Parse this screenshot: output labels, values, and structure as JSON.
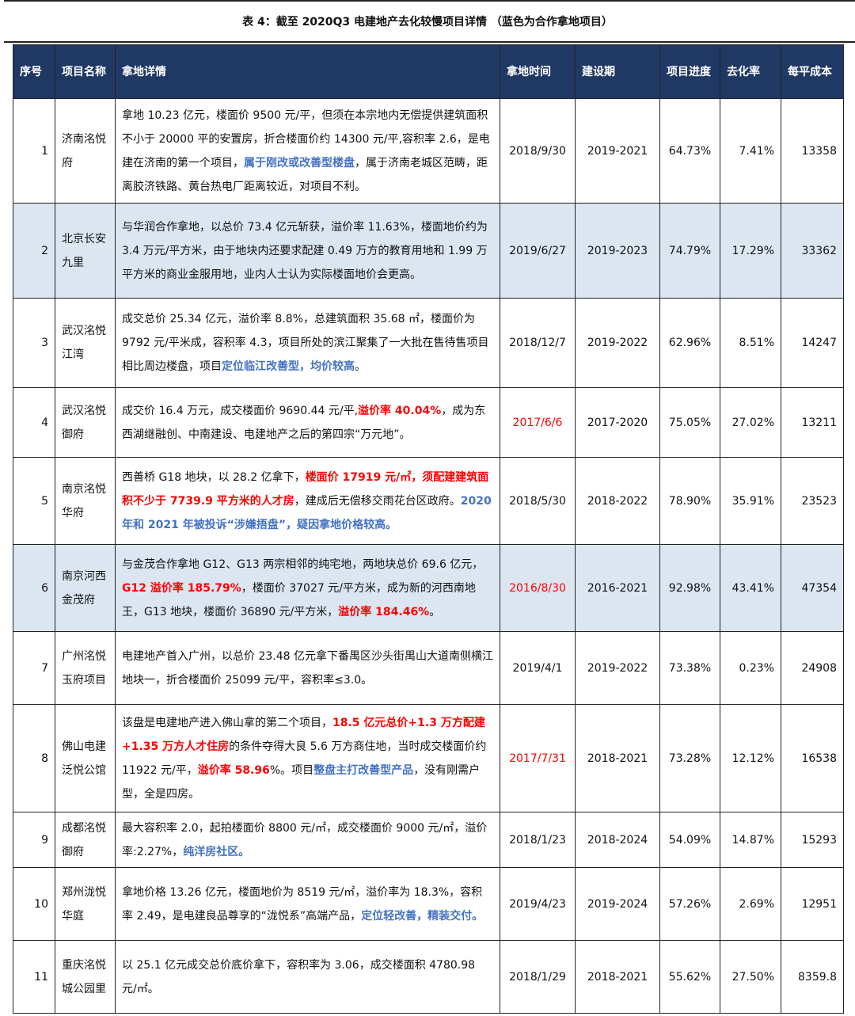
{
  "title": "表 4：截至 2020Q3 电建地产去化较慢项目详情 （蓝色为合作拿地项目）",
  "colors": {
    "header": "#203864",
    "coop_row": "#dce6f1",
    "blue_text": "#4472c4",
    "red_text": "#ff0000"
  },
  "headers": [
    "序号",
    "项目名称",
    "拿地详情",
    "拿地时间",
    "建设期",
    "项目进度",
    "去化率",
    "每平成本"
  ],
  "rows": [
    {
      "no": "1",
      "name": "济南洺悦府",
      "coop": false,
      "date": "2018/9/30",
      "date_red": false,
      "period": "2019-2021",
      "progress": "64.73%",
      "rate": "7.41%",
      "cost": "13358",
      "detail": [
        {
          "t": "拿地 10.23 亿元，楼面价 9500 元/平，但须在本宗地内无偿提供建筑面积不小于 20000 平的安置房，折合楼面价约 14300 元/平,容积率 2.6，是电建在济南的第一个项目，",
          "s": ""
        },
        {
          "t": "属于刚改或改善型楼盘",
          "s": "blue"
        },
        {
          "t": "，属于济南老城区范畴，距离胶济铁路、黄台热电厂距离较近，对项目不利。",
          "s": ""
        }
      ]
    },
    {
      "no": "2",
      "name": "北京长安九里",
      "coop": true,
      "date": "2019/6/27",
      "date_red": false,
      "period": "2019-2023",
      "progress": "74.79%",
      "rate": "17.29%",
      "cost": "33362",
      "detail": [
        {
          "t": "与华润合作拿地，以总价 73.4 亿元斩获，溢价率 11.63%，楼面地价约为 3.4 万元/平方米，由于地块内还要求配建 0.49 万方的教育用地和 1.99 万平方米的商业金服用地，业内人士认为实际楼面地价会更高。",
          "s": ""
        }
      ]
    },
    {
      "no": "3",
      "name": "武汉洺悦江湾",
      "coop": false,
      "date": "2018/12/7",
      "date_red": false,
      "period": "2019-2022",
      "progress": "62.96%",
      "rate": "8.51%",
      "cost": "14247",
      "detail": [
        {
          "t": "成交总价 25.34 亿元，溢价率 8.8%，总建筑面积 35.68 ㎡，楼面价为 9792 元/平米成，容积率 4.3，项目所处的滨江聚集了一大批在售待售项目相比周边楼盘，项目",
          "s": ""
        },
        {
          "t": "定位临江改善型，均价较高",
          "s": "blue"
        },
        {
          "t": "。",
          "s": ""
        }
      ]
    },
    {
      "no": "4",
      "name": "武汉洺悦御府",
      "coop": false,
      "date": "2017/6/6",
      "date_red": true,
      "period": "2017-2020",
      "progress": "75.05%",
      "rate": "27.02%",
      "cost": "13211",
      "detail": [
        {
          "t": "成交价 16.4 万元，成交楼面价 9690.44 元/平,",
          "s": ""
        },
        {
          "t": "溢价率 40.04%",
          "s": "red"
        },
        {
          "t": "，成为东西湖继融创、中南建设、电建地产之后的第四宗“万元地”。",
          "s": ""
        }
      ]
    },
    {
      "no": "5",
      "name": "南京洺悦华府",
      "coop": false,
      "date": "2018/5/30",
      "date_red": false,
      "period": "2018-2022",
      "progress": "78.90%",
      "rate": "35.91%",
      "cost": "23523",
      "detail": [
        {
          "t": "西善桥 G18 地块，以 28.2 亿拿下，",
          "s": ""
        },
        {
          "t": "楼面价 17919 元/㎡，须配建建筑面积不少于 7739.9 平方米的人才房",
          "s": "red"
        },
        {
          "t": "，建成后无偿移交雨花台区政府。",
          "s": ""
        },
        {
          "t": "2020 年和 2021 年被投诉“涉嫌捂盘”，疑因拿地价格较高。",
          "s": "blue"
        }
      ]
    },
    {
      "no": "6",
      "name": "南京河西金茂府",
      "coop": true,
      "date": "2016/8/30",
      "date_red": true,
      "period": "2016-2021",
      "progress": "92.98%",
      "rate": "43.41%",
      "cost": "47354",
      "detail": [
        {
          "t": "与金茂合作拿地 G12、G13 两宗相邻的纯宅地，两地块总价 69.6 亿元，",
          "s": ""
        },
        {
          "t": "G12 溢价率 185.79%",
          "s": "red"
        },
        {
          "t": "，楼面价 37027 元/平方米，成为新的河西南地王，G13 地块，楼面价 36890 元/平方米，",
          "s": ""
        },
        {
          "t": "溢价率 184.46%",
          "s": "red"
        },
        {
          "t": "。",
          "s": ""
        }
      ]
    },
    {
      "no": "7",
      "name": "广州洺悦玉府项目",
      "coop": false,
      "date": "2019/4/1",
      "date_red": false,
      "period": "2019-2022",
      "progress": "73.38%",
      "rate": "0.23%",
      "cost": "24908",
      "detail": [
        {
          "t": "电建地产首入广州，以总价 23.48 亿元拿下番禺区沙头街禺山大道南侧横江地块一，折合楼面价 25099 元/平，容积率≤3.0。",
          "s": ""
        }
      ]
    },
    {
      "no": "8",
      "name": "佛山电建泛悦公馆",
      "coop": false,
      "date": "2017/7/31",
      "date_red": true,
      "period": "2018-2021",
      "progress": "73.28%",
      "rate": "12.12%",
      "cost": "16538",
      "detail": [
        {
          "t": "该盘是电建地产进入佛山拿的第二个项目，",
          "s": ""
        },
        {
          "t": "18.5 亿元总价+1.3 万方配建+1.35 万方人才住房",
          "s": "red"
        },
        {
          "t": "的条件夺得大良 5.6 万方商住地，当时成交楼面价约 11922 元/平，",
          "s": ""
        },
        {
          "t": "溢价率 58.96",
          "s": "red"
        },
        {
          "t": "%。项目",
          "s": ""
        },
        {
          "t": "整盘主打改善型产品",
          "s": "blue"
        },
        {
          "t": "，没有刚需户型，全是四房。",
          "s": ""
        }
      ]
    },
    {
      "no": "9",
      "name": "成都洺悦御府",
      "coop": false,
      "date": "2018/1/23",
      "date_red": false,
      "period": "2018-2024",
      "progress": "54.09%",
      "rate": "14.87%",
      "cost": "15293",
      "detail": [
        {
          "t": "最大容积率 2.0，起拍楼面价 8800 元/㎡，成交楼面价 9000 元/㎡，溢价率:2.27%，",
          "s": ""
        },
        {
          "t": "纯洋房社区。",
          "s": "blue"
        }
      ]
    },
    {
      "no": "10",
      "name": "郑州泷悦华庭",
      "coop": false,
      "date": "2019/4/23",
      "date_red": false,
      "period": "2019-2024",
      "progress": "57.26%",
      "rate": "2.69%",
      "cost": "12951",
      "detail": [
        {
          "t": "拿地价格 13.26 亿元，楼面地价为 8519 元/㎡，溢价率为 18.3%，容积率 2.49，是电建良品尊享的“泷悦系”高端产品，",
          "s": ""
        },
        {
          "t": "定位轻改善，精装交付。",
          "s": "blue"
        }
      ]
    },
    {
      "no": "11",
      "name": "重庆洺悦城公园里",
      "coop": false,
      "date": "2018/1/29",
      "date_red": false,
      "period": "2018-2021",
      "progress": "55.62%",
      "rate": "27.50%",
      "cost": "8359.8",
      "detail": [
        {
          "t": "以 25.1 亿元成交总价底价拿下，容积率为 3.06，成交楼面积 4780.98 元/㎡。",
          "s": ""
        }
      ]
    }
  ]
}
